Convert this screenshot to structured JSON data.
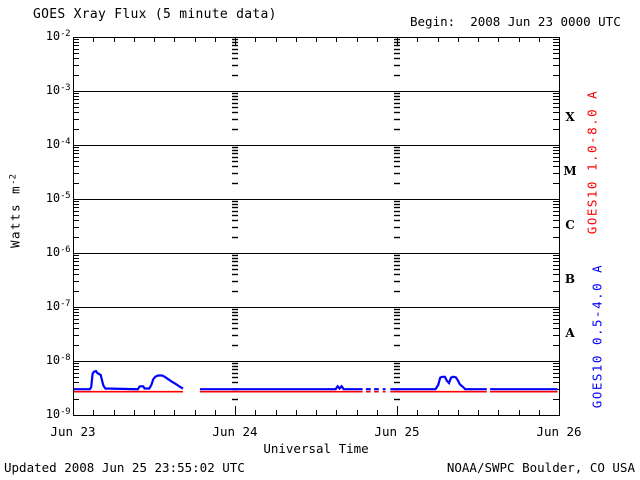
{
  "header": {
    "title": "GOES Xray Flux (5 minute data)",
    "begin_label": "Begin:  2008 Jun 23 0000 UTC"
  },
  "footer": {
    "updated": "Updated 2008 Jun 25 23:55:02 UTC",
    "agency": "NOAA/SWPC Boulder, CO USA"
  },
  "colors": {
    "red": "#FF0000",
    "blue": "#0000FF",
    "axis": "#000000",
    "background": "#FFFFFF"
  },
  "chart_data": {
    "type": "line",
    "title": "GOES Xray Flux (5 minute data)",
    "begin": "2008 Jun 23 0000 UTC",
    "y_axis": {
      "label_text": "Watts m",
      "label_exp": "-2",
      "scale": "log",
      "ylim": [
        1e-09,
        0.01
      ],
      "exponents": [
        -2,
        -3,
        -4,
        -5,
        -6,
        -7,
        -8,
        -9
      ],
      "grid_exponents": [
        -3,
        -4,
        -5,
        -6,
        -7,
        -8
      ]
    },
    "x_axis": {
      "label": "Universal Time",
      "unit": "days",
      "range_hours": [
        0,
        72
      ],
      "minor_tick_hours": 3,
      "day_tick_hours": 24,
      "grid_hours": [
        24,
        48
      ],
      "ticks": [
        {
          "label": "Jun 23",
          "hour": 0
        },
        {
          "label": "Jun 24",
          "hour": 24
        },
        {
          "label": "Jun 25",
          "hour": 48
        },
        {
          "label": "Jun 26",
          "hour": 72
        }
      ]
    },
    "right_axis": {
      "class_letters": [
        {
          "label": "X",
          "flux": 0.000316
        },
        {
          "label": "M",
          "flux": 3.16e-05
        },
        {
          "label": "C",
          "flux": 3.16e-06
        },
        {
          "label": "B",
          "flux": 3.16e-07
        },
        {
          "label": "A",
          "flux": 3.16e-08
        }
      ],
      "red_label": "GOES10 1.0-8.0 A",
      "blue_label": "GOES10 0.5-4.0 A"
    },
    "series": [
      {
        "name": "GOES10 1.0-8.0 A",
        "color": "#FF0000",
        "width": 1.6,
        "segments": [
          [
            [
              0.15,
              2.7e-09
            ],
            [
              16.3,
              2.7e-09
            ]
          ],
          [
            [
              18.8,
              2.7e-09
            ],
            [
              42.9,
              2.7e-09
            ]
          ],
          [
            [
              43.4,
              2.7e-09
            ],
            [
              44.1,
              2.7e-09
            ]
          ],
          [
            [
              44.6,
              2.7e-09
            ],
            [
              45.3,
              2.7e-09
            ]
          ],
          [
            [
              45.9,
              2.7e-09
            ],
            [
              46.3,
              2.7e-09
            ]
          ],
          [
            [
              47.0,
              2.7e-09
            ],
            [
              61.3,
              2.7e-09
            ]
          ],
          [
            [
              61.8,
              2.7e-09
            ],
            [
              71.8,
              2.7e-09
            ]
          ]
        ]
      },
      {
        "name": "GOES10 0.5-4.0 A",
        "color": "#0000FF",
        "width": 2.2,
        "segments": [
          [
            [
              0.15,
              3e-09
            ],
            [
              2.5,
              3e-09
            ],
            [
              2.7,
              3.3e-09
            ],
            [
              2.9,
              5.8e-09
            ],
            [
              3.1,
              6.3e-09
            ],
            [
              3.4,
              6.5e-09
            ],
            [
              3.6,
              6e-09
            ],
            [
              3.9,
              5.7e-09
            ],
            [
              4.1,
              5.5e-09
            ],
            [
              4.3,
              4.4e-09
            ],
            [
              4.5,
              3.5e-09
            ],
            [
              4.8,
              3.1e-09
            ],
            [
              9.6,
              3e-09
            ],
            [
              9.9,
              3.4e-09
            ],
            [
              10.4,
              3.4e-09
            ],
            [
              10.6,
              3.1e-09
            ],
            [
              11.3,
              3.1e-09
            ],
            [
              11.6,
              3.6e-09
            ],
            [
              11.9,
              4.6e-09
            ],
            [
              12.2,
              5.1e-09
            ],
            [
              12.6,
              5.4e-09
            ],
            [
              13.2,
              5.4e-09
            ],
            [
              13.6,
              5.1e-09
            ],
            [
              14.1,
              4.6e-09
            ],
            [
              14.7,
              4.1e-09
            ],
            [
              15.3,
              3.7e-09
            ],
            [
              15.9,
              3.3e-09
            ],
            [
              16.3,
              3.1e-09
            ]
          ],
          [
            [
              18.8,
              3e-09
            ],
            [
              38.9,
              3e-09
            ],
            [
              39.2,
              3.4e-09
            ],
            [
              39.5,
              3.1e-09
            ],
            [
              39.8,
              3.4e-09
            ],
            [
              40.1,
              3e-09
            ],
            [
              42.9,
              3e-09
            ]
          ],
          [
            [
              43.4,
              3e-09
            ],
            [
              44.1,
              3e-09
            ]
          ],
          [
            [
              44.6,
              3e-09
            ],
            [
              45.3,
              3e-09
            ]
          ],
          [
            [
              45.9,
              3e-09
            ],
            [
              46.3,
              3e-09
            ]
          ],
          [
            [
              47.0,
              3e-09
            ],
            [
              53.7,
              3e-09
            ],
            [
              54.1,
              3.6e-09
            ],
            [
              54.4,
              4.9e-09
            ],
            [
              54.7,
              5.1e-09
            ],
            [
              55.1,
              5.1e-09
            ],
            [
              55.4,
              4.3e-09
            ],
            [
              55.7,
              3.9e-09
            ],
            [
              56.0,
              4.9e-09
            ],
            [
              56.3,
              5.1e-09
            ],
            [
              56.7,
              5e-09
            ],
            [
              57.0,
              4.4e-09
            ],
            [
              57.3,
              3.7e-09
            ],
            [
              57.8,
              3.3e-09
            ],
            [
              58.1,
              3e-09
            ],
            [
              61.3,
              3e-09
            ]
          ],
          [
            [
              61.8,
              3e-09
            ],
            [
              71.8,
              3e-09
            ]
          ]
        ]
      }
    ]
  }
}
